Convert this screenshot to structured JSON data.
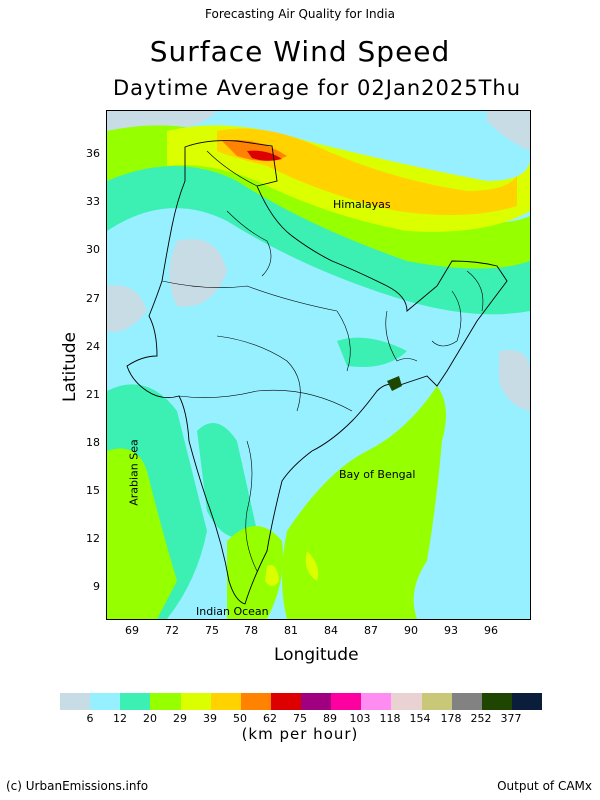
{
  "header": {
    "top": "Forecasting Air Quality for India",
    "title": "Surface Wind Speed",
    "subtitle": "Daytime Average for 02Jan2025Thu"
  },
  "axes": {
    "xlabel": "Longitude",
    "ylabel": "Latitude",
    "xticks": [
      "69",
      "72",
      "75",
      "78",
      "81",
      "84",
      "87",
      "90",
      "93",
      "96"
    ],
    "yticks": [
      "36",
      "33",
      "30",
      "27",
      "24",
      "21",
      "18",
      "15",
      "12",
      "9"
    ]
  },
  "map_labels": {
    "himalayas": "Himalayas",
    "arabian_sea": "Arabian Sea",
    "bay_of_bengal": "Bay of Bengal",
    "indian_ocean": "Indian Ocean"
  },
  "legend": {
    "colors": [
      "#c8dce6",
      "#96f0ff",
      "#3cf0b4",
      "#96ff00",
      "#dcff00",
      "#ffd200",
      "#ff8200",
      "#dc0000",
      "#a00080",
      "#ff00a0",
      "#ff8cf0",
      "#ebd2d2",
      "#c8c878",
      "#828282",
      "#1e4600",
      "#0a1e3c"
    ],
    "ticks": [
      "6",
      "12",
      "20",
      "29",
      "39",
      "50",
      "62",
      "75",
      "89",
      "103",
      "118",
      "154",
      "178",
      "252",
      "377"
    ],
    "unit": "(km per hour)"
  },
  "footer": {
    "left": "(c) UrbanEmissions.info",
    "right": "Output of CAMx"
  }
}
